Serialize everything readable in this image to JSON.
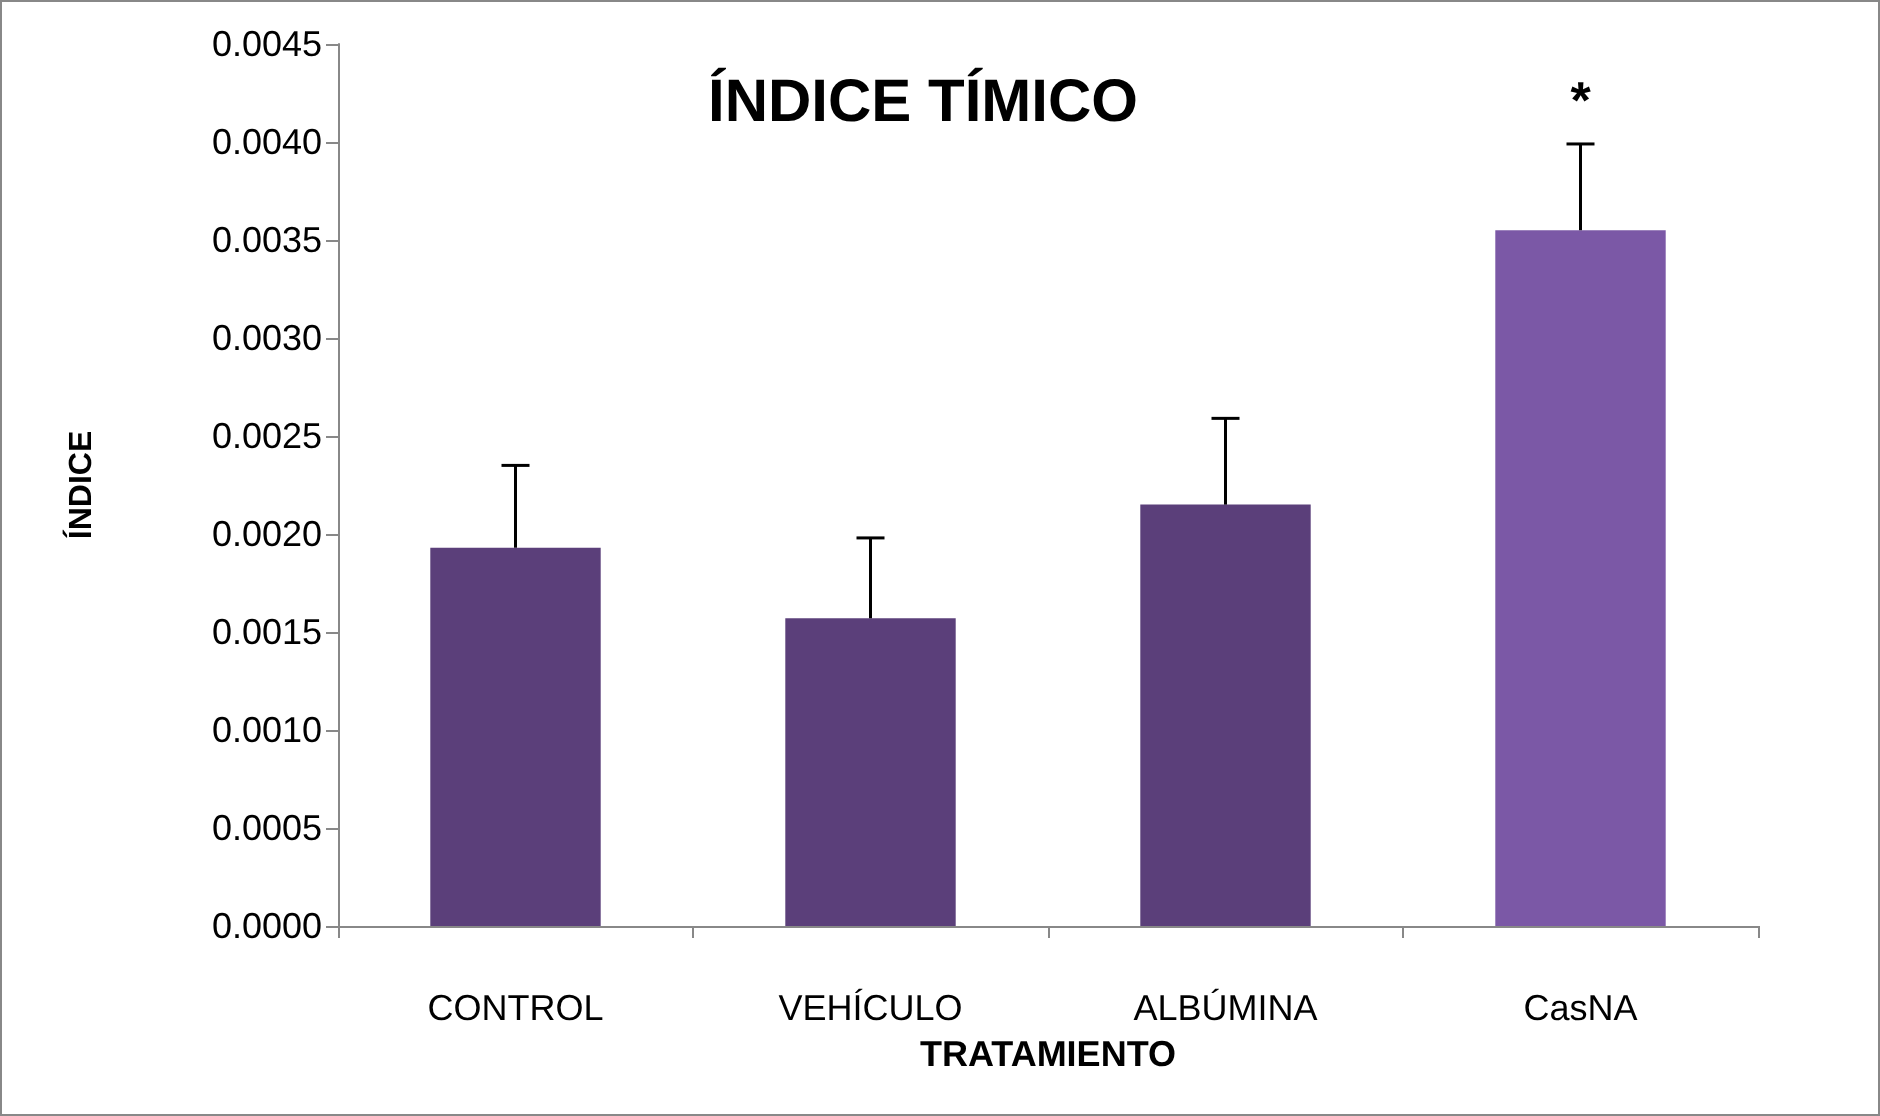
{
  "chart_data": {
    "type": "bar",
    "title": "ÍNDICE TÍMICO",
    "xlabel": "TRATAMIENTO",
    "ylabel": "ÍNDICE",
    "categories": [
      "CONTROL",
      "VEHÍCULO",
      "ALBÚMINA",
      "CasNA"
    ],
    "values": [
      0.00193,
      0.00157,
      0.00215,
      0.00355
    ],
    "colors": [
      "#5b3f7a",
      "#5b3f7a",
      "#5b3f7a",
      "#7b58a6"
    ],
    "errors": [
      [
        0.00193,
        0.00235
      ],
      [
        0.00157,
        0.00198
      ],
      [
        0.00215,
        0.00259
      ],
      [
        0.00355,
        0.00399
      ]
    ],
    "value_labels": [
      null,
      null,
      null,
      "*"
    ],
    "ylim": [
      0,
      0.0045
    ],
    "yticks": [
      {
        "value": 0,
        "label": "0.0000"
      },
      {
        "value": 0.0005,
        "label": "0.0005"
      },
      {
        "value": 0.001,
        "label": "0.0010"
      },
      {
        "value": 0.0015,
        "label": "0.0015"
      },
      {
        "value": 0.002,
        "label": "0.0020"
      },
      {
        "value": 0.0025,
        "label": "0.0025"
      },
      {
        "value": 0.003,
        "label": "0.0030"
      },
      {
        "value": 0.0035,
        "label": "0.0035"
      },
      {
        "value": 0.004,
        "label": "0.0040"
      },
      {
        "value": 0.0045,
        "label": "0.0045"
      }
    ],
    "grid": false
  }
}
